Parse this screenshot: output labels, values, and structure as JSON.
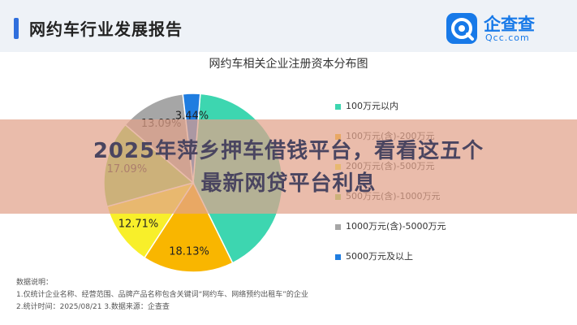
{
  "header": {
    "report_title": "网约车行业发展报告",
    "logo_name": "企查查",
    "logo_domain": "Qcc.com",
    "accent_color": "#2f6fdd",
    "brand_color": "#1779e8"
  },
  "banner": {
    "line1": "2025年萍乡押车借钱平台，看看这五个",
    "line2": "最新网贷平台利息"
  },
  "notes": {
    "heading": "数据说明：",
    "line1": "1.仅统计企业名称、经营范围、品牌产品名称包含关键词“网约车、网络预约出租车”的企业",
    "line2": "2.统计时间：2025/08/21    3.数据来源：企查查"
  },
  "chart_data": {
    "type": "pie",
    "title": "网约车相关企业注册资本分布图",
    "legend_position": "right",
    "series": [
      {
        "name": "100万元以内",
        "value": 45.6,
        "color": "#3dd6b0"
      },
      {
        "name": "100万元(含)-200万元",
        "value": 18.13,
        "color": "#f9b600"
      },
      {
        "name": "200万元(含)-500万元",
        "value": 12.71,
        "color": "#f8ef2a"
      },
      {
        "name": "500万元(含)-1000万元",
        "value": 17.09,
        "color": "#92d64f"
      },
      {
        "name": "1000万元(含)-5000万元",
        "value": 13.09,
        "color": "#a6a6a6"
      },
      {
        "name": "5000万元及以上",
        "value": 3.44,
        "color": "#1f7de0"
      }
    ],
    "labels": {
      "100万元(含)-200万元": "18.13%",
      "200万元(含)-500万元": "12.71%",
      "500万元(含)-1000万元": "17.09%",
      "1000万元(含)-5000万元": "13.09%",
      "5000万元及以上": "3.44%"
    }
  }
}
